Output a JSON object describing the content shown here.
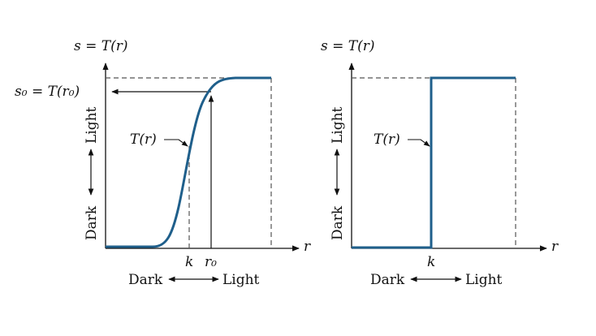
{
  "left_panel": {
    "y_axis_label": "s = T(r)",
    "x_axis_label": "r",
    "s0_label": "s₀ = T(r₀)",
    "curve_label": "T(r)",
    "k_tick": "k",
    "r0_tick": "r₀",
    "x_dark": "Dark",
    "x_light": "Light",
    "y_dark": "Dark",
    "y_light": "Light"
  },
  "right_panel": {
    "y_axis_label": "s = T(r)",
    "x_axis_label": "r",
    "curve_label": "T(r)",
    "k_tick": "k",
    "x_dark": "Dark",
    "x_light": "Light",
    "y_dark": "Dark",
    "y_light": "Light"
  },
  "colors": {
    "curve": "#1f5f8b",
    "axes": "#111111",
    "guides": "#555555"
  }
}
